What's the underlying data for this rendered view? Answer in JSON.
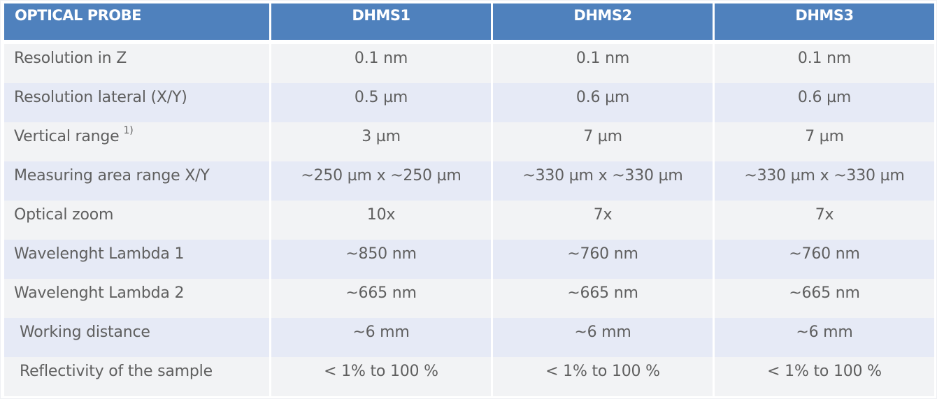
{
  "table": {
    "headers": [
      "OPTICAL PROBE",
      "DHMS1",
      "DHMS2",
      "DHMS3"
    ],
    "rows": [
      {
        "label": "Resolution in Z",
        "footnote": "",
        "values": [
          "0.1 nm",
          "0.1 nm",
          "0.1 nm"
        ]
      },
      {
        "label": "Resolution lateral (X/Y)",
        "footnote": "",
        "values": [
          "0.5 µm",
          "0.6 µm",
          "0.6 µm"
        ]
      },
      {
        "label": "Vertical range",
        "footnote": "1)",
        "values": [
          "3 µm",
          "7 µm",
          "7 µm"
        ]
      },
      {
        "label": "Measuring area range X/Y",
        "footnote": "",
        "values": [
          "~250 µm x ~250 µm",
          "~330 µm x ~330 µm",
          "~330 µm x ~330 µm"
        ]
      },
      {
        "label": "Optical zoom",
        "footnote": "",
        "values": [
          "10x",
          "7x",
          "7x"
        ]
      },
      {
        "label": "Wavelenght Lambda 1",
        "footnote": "",
        "values": [
          "~850 nm",
          "~760 nm",
          "~760 nm"
        ]
      },
      {
        "label": "Wavelenght Lambda 2",
        "footnote": "",
        "values": [
          "~665 nm",
          "~665 nm",
          "~665 nm"
        ]
      },
      {
        "label": "Working distance",
        "footnote": "",
        "values": [
          "~6 mm",
          "~6 mm",
          "~6 mm"
        ]
      },
      {
        "label": "Reflectivity of the sample",
        "footnote": "",
        "values": [
          "< 1% to 100 %",
          "< 1% to 100 %",
          "< 1% to 100 %"
        ]
      }
    ]
  },
  "colors": {
    "header_bg": "#4f81bd",
    "header_text": "#ffffff",
    "row_light": "#f2f3f5",
    "row_blue": "#e6eaf6",
    "body_text": "#5f5f5f"
  }
}
